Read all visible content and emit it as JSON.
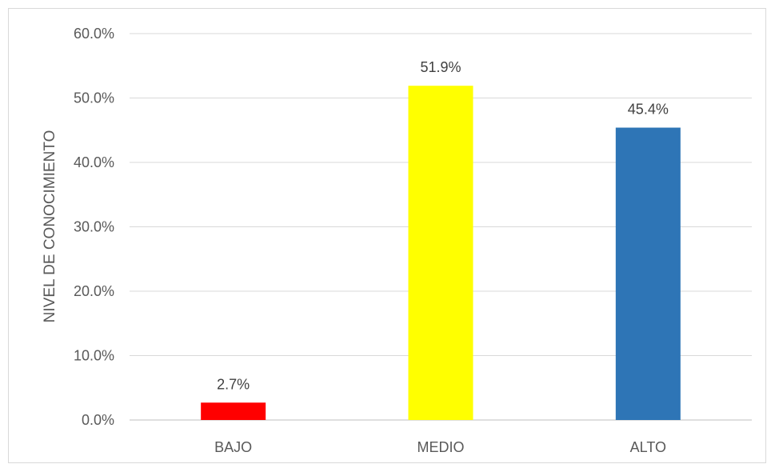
{
  "chart_data": {
    "type": "bar",
    "title": "",
    "xlabel": "",
    "ylabel": "NIVEL DE CONOCIMIENTO",
    "categories": [
      "BAJO",
      "MEDIO",
      "ALTO"
    ],
    "values": [
      2.7,
      51.9,
      45.4
    ],
    "data_labels": [
      "2.7%",
      "51.9%",
      "45.4%"
    ],
    "colors": [
      "#ff0000",
      "#ffff00",
      "#2e75b6"
    ],
    "ylim": [
      0,
      60
    ],
    "yticks": [
      0,
      10,
      20,
      30,
      40,
      50,
      60
    ],
    "ytick_labels": [
      "0.0%",
      "10.0%",
      "20.0%",
      "30.0%",
      "40.0%",
      "50.0%",
      "60.0%"
    ],
    "grid": true,
    "legend": "none"
  }
}
